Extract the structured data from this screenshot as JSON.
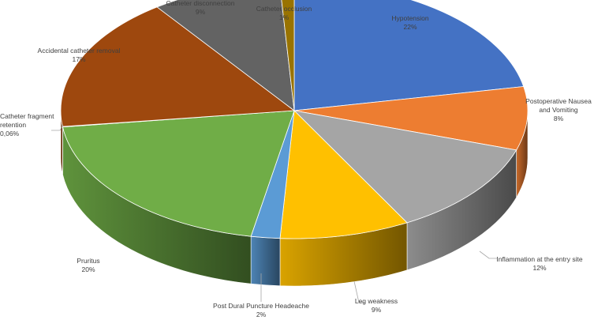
{
  "chart_data": {
    "type": "pie",
    "title": "",
    "style": "3d-pie",
    "legend": "none",
    "slices": [
      {
        "label": "Hypotension",
        "value_label": "22%",
        "value": 22,
        "color": "#4472C4"
      },
      {
        "label": "Postoperative Nausea and Vomiting",
        "value_label": "8%",
        "value": 8,
        "color": "#ED7D31"
      },
      {
        "label": "Inflammation at the entry site",
        "value_label": "12%",
        "value": 12,
        "color": "#A5A5A5"
      },
      {
        "label": "Leg weakness",
        "value_label": "9%",
        "value": 9,
        "color": "#FFC000"
      },
      {
        "label": "Post Dural Puncture Headeache",
        "value_label": "2%",
        "value": 2,
        "color": "#5B9BD5"
      },
      {
        "label": "Pruritus",
        "value_label": "20%",
        "value": 20,
        "color": "#70AD47"
      },
      {
        "label": "Catheter fragment retention",
        "value_label": "0,06%",
        "value": 0.06,
        "color": "#264478"
      },
      {
        "label": "Accidental catheter removal",
        "value_label": "17%",
        "value": 17,
        "color": "#9E480E"
      },
      {
        "label": "Catheter disconnection",
        "value_label": "9%",
        "value": 9,
        "color": "#636363"
      },
      {
        "label": "Catheter occlusion",
        "value_label": "1%",
        "value": 1,
        "color": "#997300"
      }
    ]
  }
}
